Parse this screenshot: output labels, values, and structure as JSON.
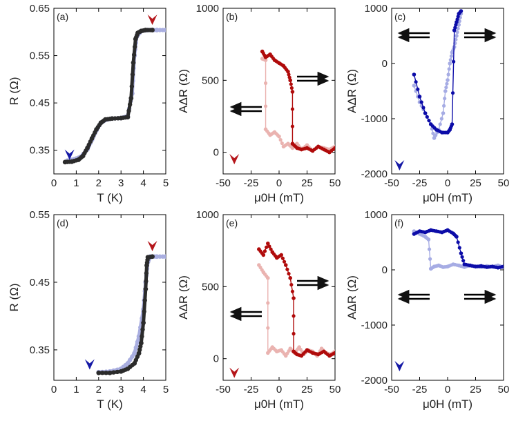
{
  "colors": {
    "dark": "#2b2b2b",
    "lavender": "#a9aee0",
    "darkred": "#b00b0b",
    "pinkred": "#eab3b0",
    "navy": "#0c0ca8",
    "lightblue": "#a6ace4",
    "arrow_red": "#b5161b",
    "arrow_blue": "#1519a6"
  },
  "chart_data": [
    {
      "panel": "(a)",
      "type": "line",
      "xlabel": "T (K)",
      "ylabel": "R (Ω)",
      "xlim": [
        0,
        5
      ],
      "ylim": [
        0.3,
        0.65
      ],
      "xticks": [
        "0",
        "1",
        "2",
        "3",
        "4",
        "5"
      ],
      "yticks": [
        "0.35",
        "0.45",
        "0.55",
        "0.65"
      ],
      "series": [
        {
          "color": "lavender",
          "x": [
            0.6,
            0.9,
            1.2,
            1.5,
            1.7,
            1.9,
            2.1,
            2.3,
            2.6,
            3.0,
            3.3,
            3.5,
            3.6,
            3.7,
            3.9,
            4.2,
            4.6,
            5.0
          ],
          "y": [
            0.328,
            0.331,
            0.336,
            0.352,
            0.372,
            0.392,
            0.408,
            0.414,
            0.417,
            0.418,
            0.422,
            0.47,
            0.55,
            0.59,
            0.602,
            0.604,
            0.604,
            0.604
          ]
        },
        {
          "color": "dark",
          "x": [
            0.5,
            0.8,
            1.1,
            1.3,
            1.5,
            1.7,
            1.9,
            2.1,
            2.3,
            2.6,
            3.0,
            3.3,
            3.45,
            3.55,
            3.65,
            3.75,
            3.9,
            4.1,
            4.4
          ],
          "y": [
            0.325,
            0.326,
            0.33,
            0.338,
            0.355,
            0.375,
            0.394,
            0.408,
            0.415,
            0.417,
            0.418,
            0.42,
            0.46,
            0.535,
            0.585,
            0.598,
            0.602,
            0.604,
            0.604
          ]
        }
      ],
      "markers": [
        {
          "color": "arrow_blue",
          "x": 0.7,
          "y": 0.34
        },
        {
          "color": "arrow_red",
          "x": 4.4,
          "y": 0.625
        }
      ]
    },
    {
      "panel": "(b)",
      "type": "line",
      "xlabel": "μ0H (mT)",
      "ylabel": "AΔR (Ω)",
      "xlim": [
        -50,
        50
      ],
      "ylim": [
        -150,
        1000
      ],
      "xticks": [
        "-50",
        "-25",
        "0",
        "25",
        "50"
      ],
      "yticks": [
        "0",
        "500",
        "1000"
      ],
      "series": [
        {
          "color": "pinkred",
          "x": [
            -15,
            -12,
            -12,
            -8,
            -4,
            0,
            4,
            8,
            12,
            16,
            20,
            25,
            30,
            35,
            40,
            45,
            50
          ],
          "y": [
            650,
            640,
            160,
            120,
            140,
            110,
            40,
            60,
            30,
            60,
            20,
            50,
            10,
            40,
            30,
            20,
            40
          ]
        },
        {
          "color": "darkred",
          "x": [
            -15,
            -12,
            -8,
            -4,
            0,
            4,
            8,
            10,
            12,
            12,
            16,
            20,
            25,
            30,
            35,
            40,
            45,
            50
          ],
          "y": [
            700,
            660,
            680,
            640,
            620,
            600,
            560,
            500,
            420,
            60,
            30,
            20,
            30,
            10,
            40,
            20,
            0,
            30
          ]
        }
      ],
      "markers": [
        {
          "color": "arrow_red",
          "x": -40,
          "y": -50
        }
      ]
    },
    {
      "panel": "(c)",
      "type": "line",
      "xlabel": "μ0H (mT)",
      "ylabel": "AΔR (Ω)",
      "xlim": [
        -50,
        50
      ],
      "ylim": [
        -2000,
        1000
      ],
      "xticks": [
        "-50",
        "-25",
        "0",
        "25",
        "50"
      ],
      "yticks": [
        "-2000",
        "-1000",
        "0",
        "1000"
      ],
      "series": [
        {
          "color": "lightblue",
          "x": [
            -30,
            -25,
            -20,
            -15,
            -12,
            -8,
            -4,
            -2,
            0,
            2,
            4,
            6,
            8,
            10,
            12
          ],
          "y": [
            -400,
            -700,
            -900,
            -1100,
            -1350,
            -1200,
            -900,
            -500,
            -300,
            0,
            200,
            300,
            500,
            700,
            900
          ]
        },
        {
          "color": "navy",
          "x": [
            -30,
            -25,
            -20,
            -15,
            -10,
            -5,
            0,
            2,
            4,
            6,
            8,
            10,
            12
          ],
          "y": [
            -200,
            -600,
            -900,
            -1100,
            -1200,
            -1250,
            -1250,
            -1200,
            -1100,
            600,
            750,
            900,
            950
          ]
        }
      ],
      "markers": [
        {
          "color": "arrow_blue",
          "x": -43,
          "y": -1850
        }
      ]
    },
    {
      "panel": "(d)",
      "type": "line",
      "xlabel": "T (K)",
      "ylabel": "R (Ω)",
      "xlim": [
        0,
        5
      ],
      "ylim": [
        0.305,
        0.55
      ],
      "xticks": [
        "0",
        "1",
        "2",
        "3",
        "4",
        "5"
      ],
      "yticks": [
        "0.35",
        "0.45",
        "0.55"
      ],
      "series": [
        {
          "color": "lavender",
          "x": [
            2.0,
            2.5,
            3.0,
            3.3,
            3.6,
            3.8,
            4.0,
            4.1,
            4.2,
            4.3,
            4.6,
            5.0
          ],
          "y": [
            0.317,
            0.318,
            0.322,
            0.33,
            0.345,
            0.37,
            0.41,
            0.45,
            0.48,
            0.488,
            0.488,
            0.488
          ]
        },
        {
          "color": "dark",
          "x": [
            2.0,
            2.5,
            3.0,
            3.3,
            3.6,
            3.8,
            3.9,
            4.0,
            4.1,
            4.15,
            4.2,
            4.4
          ],
          "y": [
            0.316,
            0.316,
            0.318,
            0.322,
            0.33,
            0.345,
            0.36,
            0.39,
            0.44,
            0.475,
            0.487,
            0.488
          ]
        }
      ],
      "markers": [
        {
          "color": "arrow_blue",
          "x": 1.6,
          "y": 0.328
        },
        {
          "color": "arrow_red",
          "x": 4.4,
          "y": 0.503
        }
      ]
    },
    {
      "panel": "(e)",
      "type": "line",
      "xlabel": "μ0H (mT)",
      "ylabel": "AΔR (Ω)",
      "xlim": [
        -50,
        50
      ],
      "ylim": [
        -150,
        1000
      ],
      "xticks": [
        "-50",
        "-25",
        "0",
        "25",
        "50"
      ],
      "yticks": [
        "0",
        "500",
        "1000"
      ],
      "series": [
        {
          "color": "pinkred",
          "x": [
            -18,
            -14,
            -10,
            -10,
            -6,
            -2,
            2,
            6,
            10,
            14,
            18,
            22,
            26,
            30,
            34,
            38,
            42,
            46,
            50
          ],
          "y": [
            650,
            600,
            560,
            40,
            80,
            50,
            60,
            20,
            70,
            40,
            80,
            30,
            60,
            50,
            20,
            70,
            40,
            30,
            50
          ]
        },
        {
          "color": "darkred",
          "x": [
            -18,
            -14,
            -10,
            -6,
            -2,
            2,
            6,
            10,
            13,
            13,
            16,
            20,
            25,
            30,
            35,
            40,
            45,
            50
          ],
          "y": [
            760,
            720,
            800,
            740,
            700,
            720,
            650,
            560,
            420,
            50,
            30,
            20,
            60,
            40,
            30,
            50,
            20,
            40
          ]
        }
      ],
      "markers": [
        {
          "color": "arrow_red",
          "x": -40,
          "y": -100
        }
      ]
    },
    {
      "panel": "(f)",
      "type": "line",
      "xlabel": "μ0H (mT)",
      "ylabel": "AΔR (Ω)",
      "xlim": [
        -50,
        50
      ],
      "ylim": [
        -2000,
        1000
      ],
      "xticks": [
        "-50",
        "-25",
        "0",
        "25",
        "50"
      ],
      "yticks": [
        "-2000",
        "-1000",
        "0",
        "1000"
      ],
      "series": [
        {
          "color": "lightblue",
          "x": [
            -30,
            -25,
            -20,
            -17,
            -15,
            -12,
            -8,
            -4,
            0,
            5,
            10,
            15,
            20,
            25,
            30,
            35,
            40,
            45,
            50
          ],
          "y": [
            700,
            650,
            600,
            550,
            20,
            60,
            80,
            50,
            60,
            100,
            80,
            50,
            80,
            60,
            50,
            70,
            60,
            80,
            50
          ]
        },
        {
          "color": "navy",
          "x": [
            -30,
            -25,
            -20,
            -15,
            -10,
            -5,
            0,
            5,
            8,
            12,
            15,
            20,
            25,
            30,
            35,
            40,
            45,
            50
          ],
          "y": [
            650,
            700,
            680,
            720,
            700,
            680,
            720,
            660,
            600,
            300,
            100,
            80,
            60,
            70,
            50,
            60,
            40,
            60
          ]
        }
      ],
      "markers": [
        {
          "color": "arrow_blue",
          "x": -43,
          "y": -1750
        }
      ]
    }
  ]
}
